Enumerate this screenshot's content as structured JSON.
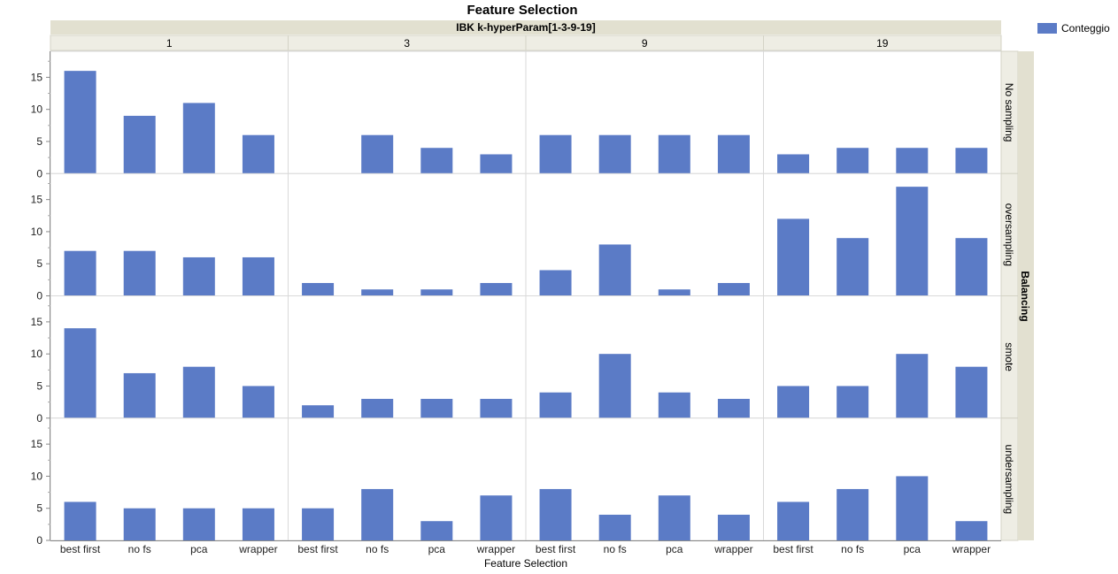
{
  "chart_data": {
    "type": "bar",
    "title": "Feature Selection",
    "column_group_label": "IBK k-hyperParam[1-3-9-19]",
    "columns": [
      "1",
      "3",
      "9",
      "19"
    ],
    "row_group_label": "Balancing",
    "rows": [
      "No sampling",
      "oversampling",
      "smote",
      "undersampling"
    ],
    "categories": [
      "best first",
      "no fs",
      "pca",
      "wrapper"
    ],
    "xlabel": "Feature Selection",
    "ylabel": "",
    "ylim": [
      0,
      18.5
    ],
    "yticks": [
      0,
      5,
      10,
      15
    ],
    "grid": false,
    "legend": {
      "position": "top-right",
      "entries": [
        {
          "name": "Conteggio",
          "color": "#5b7bc6"
        }
      ]
    },
    "bar_color": "#5b7bc6",
    "values": [
      [
        [
          16,
          9,
          11,
          6
        ],
        [
          0,
          6,
          4,
          3
        ],
        [
          6,
          6,
          6,
          6
        ],
        [
          3,
          4,
          4,
          4
        ]
      ],
      [
        [
          7,
          7,
          6,
          6
        ],
        [
          2,
          1,
          1,
          2
        ],
        [
          4,
          8,
          1,
          2
        ],
        [
          12,
          9,
          17,
          9
        ]
      ],
      [
        [
          14,
          7,
          8,
          5
        ],
        [
          2,
          3,
          3,
          3
        ],
        [
          4,
          10,
          4,
          3
        ],
        [
          5,
          5,
          10,
          8
        ]
      ],
      [
        [
          6,
          5,
          5,
          5
        ],
        [
          5,
          8,
          3,
          7
        ],
        [
          8,
          4,
          7,
          4
        ],
        [
          6,
          8,
          10,
          3
        ]
      ]
    ]
  }
}
